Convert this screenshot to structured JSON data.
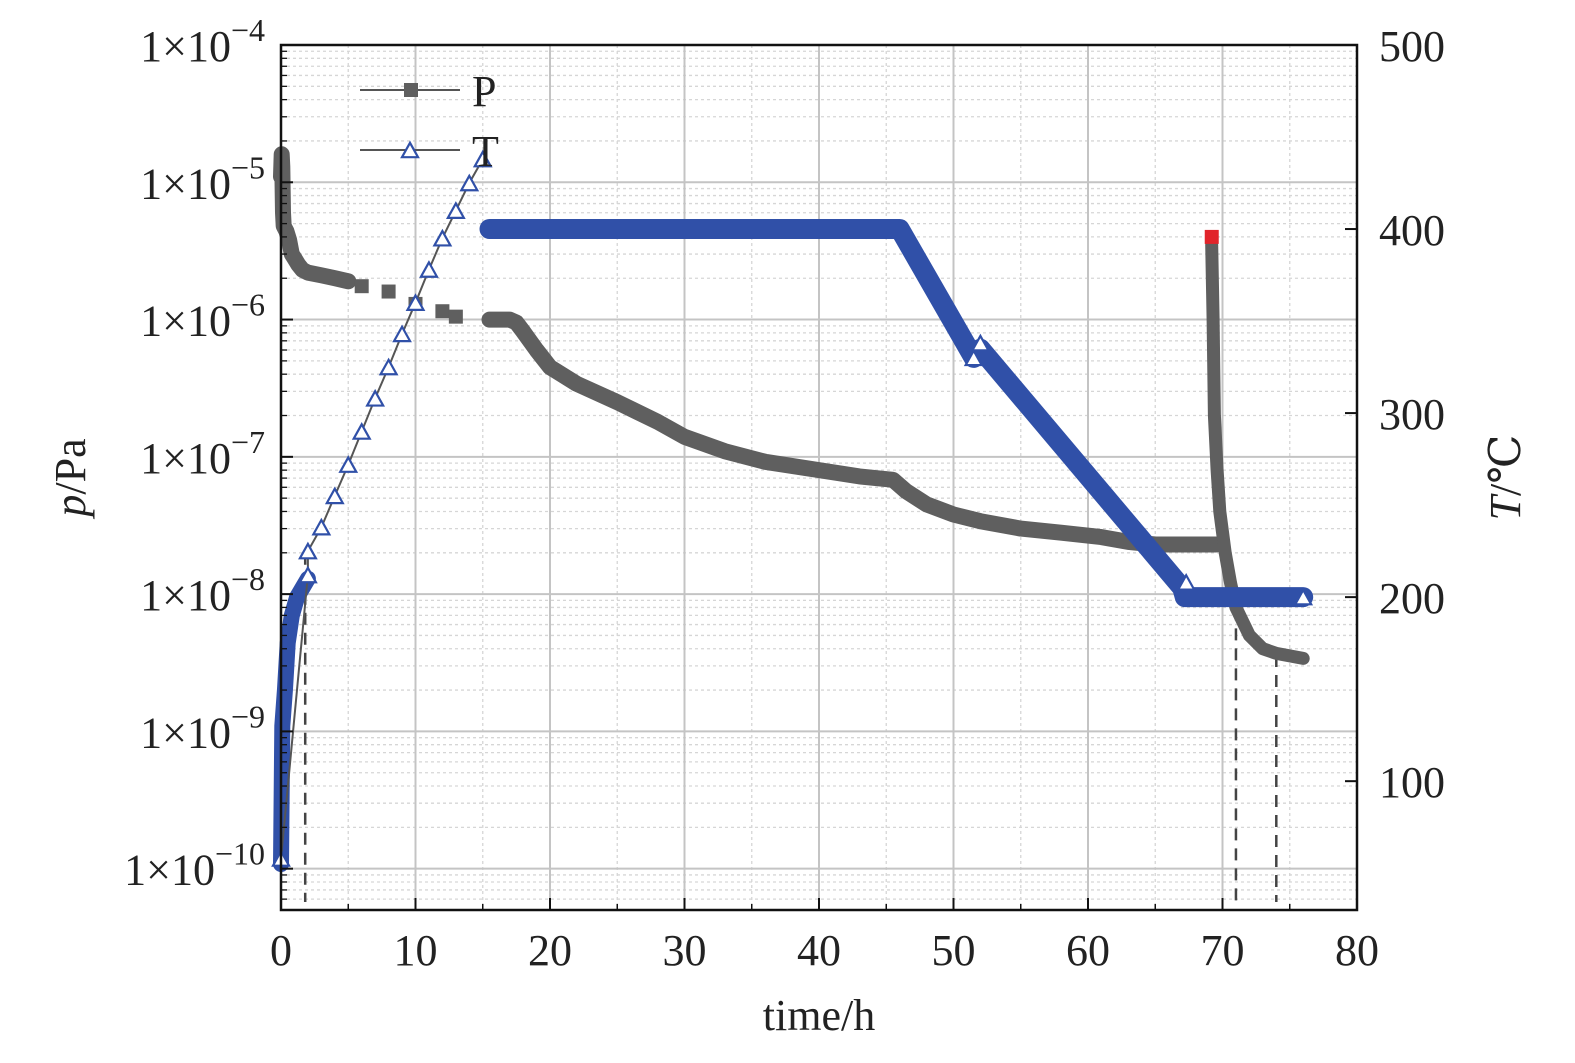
{
  "chart_data": {
    "type": "line",
    "xlabel": "time/h",
    "ylabel_left": {
      "italic": "p",
      "rest": "/Pa"
    },
    "ylabel_right": {
      "italic": "T",
      "rest": "/℃"
    },
    "xlim": [
      0,
      80
    ],
    "x_ticks": [
      0,
      10,
      20,
      30,
      40,
      50,
      60,
      70,
      80
    ],
    "x_tick_labels": [
      "0",
      "10",
      "20",
      "30",
      "40",
      "50",
      "60",
      "70",
      "80"
    ],
    "ylim_left": [
      5e-11,
      0.0001
    ],
    "yscale_left": "log",
    "y_left_ticks": [
      1e-10,
      1e-09,
      1e-08,
      1e-07,
      1e-06,
      1e-05,
      0.0001
    ],
    "y_left_tick_labels": [
      {
        "base": "1×10",
        "exp": "−10"
      },
      {
        "base": "1×10",
        "exp": "−9"
      },
      {
        "base": "1×10",
        "exp": "−8"
      },
      {
        "base": "1×10",
        "exp": "−7"
      },
      {
        "base": "1×10",
        "exp": "−6"
      },
      {
        "base": "1×10",
        "exp": "−5"
      },
      {
        "base": "1×10",
        "exp": "−4"
      }
    ],
    "ylim_right": [
      30,
      500
    ],
    "y_right_ticks": [
      100,
      200,
      300,
      400,
      500
    ],
    "y_right_tick_labels": [
      "100",
      "200",
      "300",
      "400",
      "500"
    ],
    "grid": true,
    "legend_position": "top-left",
    "series": [
      {
        "name": "P",
        "axis": "left",
        "color": "#5f5f5f",
        "marker": "square",
        "style": "dense",
        "points": [
          [
            0.0,
            1.1e-05
          ],
          [
            0.05,
            1.6e-05
          ],
          [
            0.1,
            1.3e-05
          ],
          [
            0.15,
            6e-06
          ],
          [
            0.2,
            4.8e-06
          ],
          [
            0.4,
            4.4e-06
          ],
          [
            0.6,
            3.8e-06
          ],
          [
            0.8,
            3e-06
          ],
          [
            1.0,
            2.8e-06
          ],
          [
            1.3,
            2.5e-06
          ],
          [
            1.6,
            2.3e-06
          ],
          [
            2.0,
            2.2e-06
          ],
          [
            3.0,
            2.1e-06
          ],
          [
            4.0,
            2e-06
          ],
          [
            5.0,
            1.9e-06
          ]
        ],
        "sparse_points": [
          [
            6.0,
            1.75e-06
          ],
          [
            8.0,
            1.6e-06
          ],
          [
            10.0,
            1.3e-06
          ],
          [
            12.0,
            1.15e-06
          ],
          [
            13.0,
            1.05e-06
          ]
        ],
        "points2": [
          [
            15.5,
            1e-06
          ],
          [
            16.0,
            1e-06
          ],
          [
            17.0,
            1e-06
          ],
          [
            17.5,
            9.5e-07
          ],
          [
            18.0,
            8.2e-07
          ],
          [
            19.0,
            6e-07
          ],
          [
            20.0,
            4.5e-07
          ],
          [
            22.0,
            3.4e-07
          ],
          [
            25.0,
            2.5e-07
          ],
          [
            28.0,
            1.8e-07
          ],
          [
            30.0,
            1.4e-07
          ],
          [
            33.0,
            1.1e-07
          ],
          [
            36.0,
            9.2e-08
          ],
          [
            40.0,
            8e-08
          ],
          [
            43.0,
            7.2e-08
          ],
          [
            45.5,
            6.8e-08
          ],
          [
            46.5,
            5.6e-08
          ],
          [
            48.0,
            4.5e-08
          ],
          [
            50.0,
            3.8e-08
          ],
          [
            52.0,
            3.4e-08
          ],
          [
            55.0,
            3e-08
          ],
          [
            58.0,
            2.8e-08
          ],
          [
            61.0,
            2.6e-08
          ],
          [
            63.0,
            2.4e-08
          ],
          [
            65.0,
            2.3e-08
          ],
          [
            69.5,
            2.3e-08
          ]
        ],
        "points3": [
          [
            69.2,
            3.5e-06
          ],
          [
            69.3,
            1e-06
          ],
          [
            69.4,
            2e-07
          ],
          [
            69.6,
            8e-08
          ],
          [
            69.8,
            4e-08
          ],
          [
            70.2,
            2e-08
          ],
          [
            70.6,
            1.2e-08
          ],
          [
            71.0,
            8e-09
          ],
          [
            72.0,
            5e-09
          ],
          [
            73.0,
            4e-09
          ],
          [
            74.0,
            3.7e-09
          ],
          [
            76.0,
            3.4e-09
          ]
        ],
        "highlight_point": [
          69.2,
          4e-06
        ],
        "highlight_color": "#e1242a"
      },
      {
        "name": "T",
        "axis": "right",
        "color": "#3050a8",
        "marker": "triangle",
        "points": [
          [
            0.0,
            55
          ],
          [
            0.1,
            130
          ],
          [
            0.3,
            150
          ],
          [
            0.5,
            175
          ],
          [
            0.8,
            190
          ],
          [
            1.2,
            200
          ],
          [
            2.0,
            210
          ]
        ],
        "sparse_points": [
          [
            0.0,
            58
          ],
          [
            2.0,
            212
          ],
          [
            2.0,
            225
          ],
          [
            3.0,
            238
          ],
          [
            4.0,
            255
          ],
          [
            5.0,
            272
          ],
          [
            6.0,
            290
          ],
          [
            7.0,
            308
          ],
          [
            8.0,
            325
          ],
          [
            9.0,
            343
          ],
          [
            10.0,
            360
          ],
          [
            11.0,
            378
          ],
          [
            12.0,
            395
          ],
          [
            13.0,
            410
          ],
          [
            14.0,
            425
          ],
          [
            15.0,
            438
          ]
        ],
        "points2": [
          [
            15.5,
            400
          ],
          [
            46.0,
            400
          ],
          [
            51.5,
            330
          ],
          [
            52.0,
            335
          ],
          [
            67.0,
            205
          ],
          [
            67.2,
            200
          ],
          [
            76.0,
            200
          ]
        ],
        "marker_points": [
          [
            51.5,
            330
          ],
          [
            52.0,
            338
          ],
          [
            67.3,
            208
          ],
          [
            76.0,
            200
          ]
        ]
      }
    ],
    "annotations": {
      "dashed_verticals": [
        {
          "x": 1.8,
          "to_value": 2e-08
        },
        {
          "x": 71.0,
          "to_value": 1.1e-08
        },
        {
          "x": 74.0,
          "to_value": 3.6e-09
        }
      ]
    }
  }
}
